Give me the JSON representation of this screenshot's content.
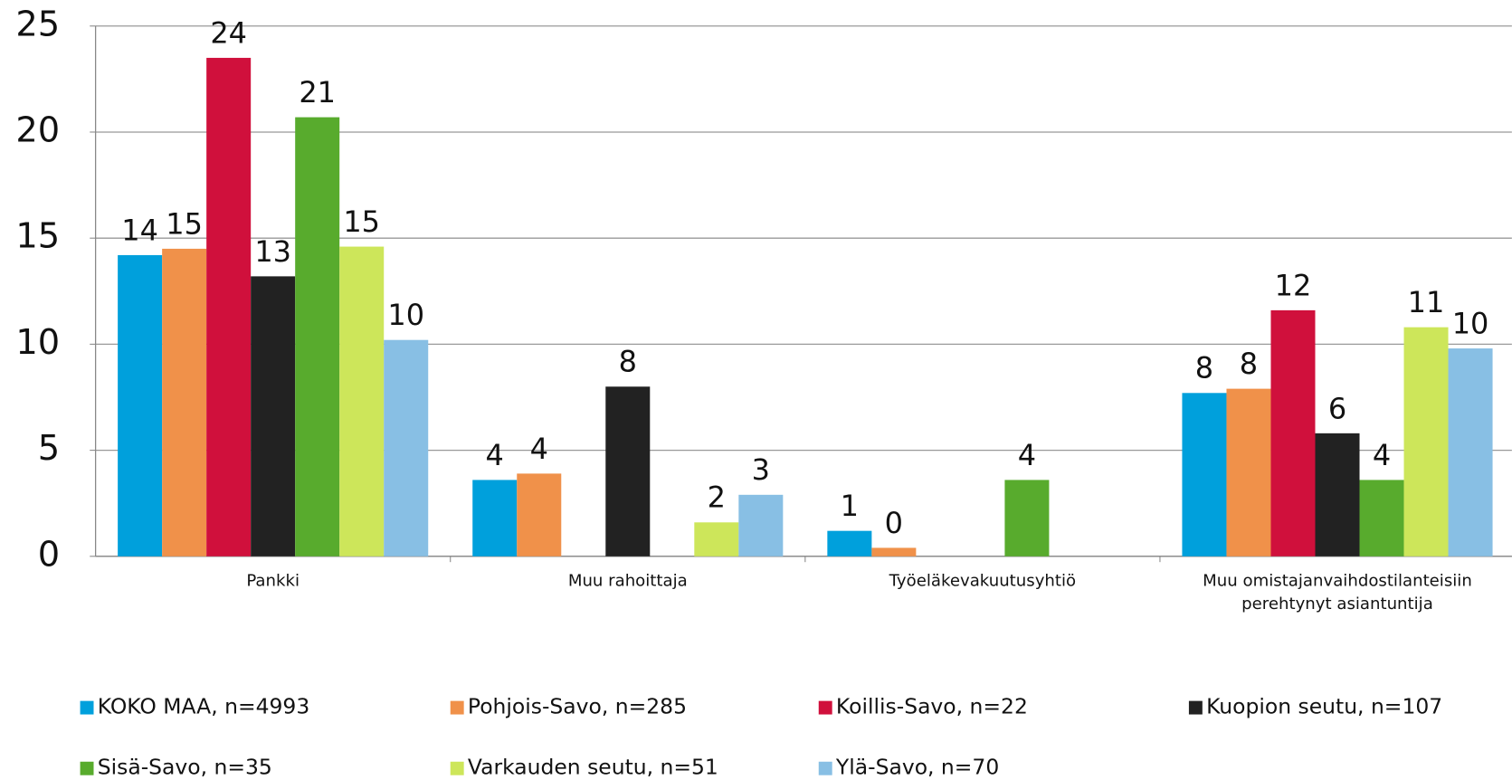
{
  "chart_data": {
    "type": "bar",
    "categories": [
      "Pankki",
      "Muu rahoittaja",
      "Työeläkevakuutusyhtiö",
      [
        "Muu omistajanvaihdostilanteisiin",
        "perehtynyt asiantuntija"
      ]
    ],
    "series": [
      {
        "name": "KOKO MAA, n=4993",
        "color": "#00a0dc",
        "values": [
          14.2,
          3.6,
          1.2,
          7.7
        ],
        "value_labels": [
          "14",
          "4",
          "1",
          "8"
        ]
      },
      {
        "name": "Pohjois-Savo, n=285",
        "color": "#f0914a",
        "values": [
          14.5,
          3.9,
          0.4,
          7.9
        ],
        "value_labels": [
          "15",
          "4",
          "0",
          "8"
        ]
      },
      {
        "name": "Koillis-Savo, n=22",
        "color": "#d0103c",
        "values": [
          23.5,
          null,
          null,
          11.6
        ],
        "value_labels": [
          "24",
          null,
          null,
          "12"
        ]
      },
      {
        "name": "Kuopion seutu, n=107",
        "color": "#222222",
        "values": [
          13.2,
          8.0,
          null,
          5.8
        ],
        "value_labels": [
          "13",
          "8",
          null,
          "6"
        ]
      },
      {
        "name": "Sisä-Savo, n=35",
        "color": "#58ab2d",
        "values": [
          20.7,
          null,
          3.6,
          3.6
        ],
        "value_labels": [
          "21",
          null,
          "4",
          "4"
        ]
      },
      {
        "name": "Varkauden seutu, n=51",
        "color": "#cde65a",
        "values": [
          14.6,
          1.6,
          null,
          10.8
        ],
        "value_labels": [
          "15",
          "2",
          null,
          "11"
        ]
      },
      {
        "name": "Ylä-Savo, n=70",
        "color": "#88bfe4",
        "values": [
          10.2,
          2.9,
          null,
          9.8
        ],
        "value_labels": [
          "10",
          "3",
          null,
          "10"
        ]
      }
    ],
    "ylim": [
      0,
      25
    ],
    "yticks": [
      0,
      5,
      10,
      15,
      20,
      25
    ],
    "grid": true,
    "legend": "bottom"
  }
}
